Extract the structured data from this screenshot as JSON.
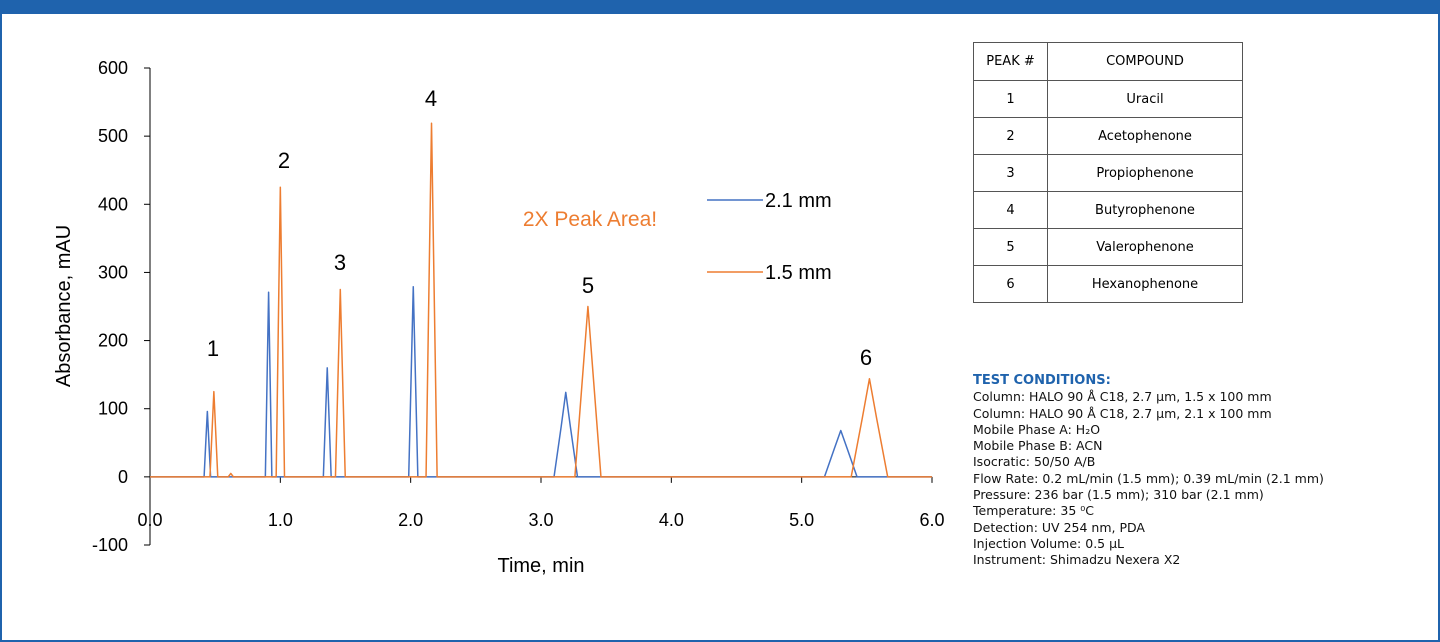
{
  "chart_data": {
    "type": "line",
    "annotations": [
      "1",
      "2",
      "3",
      "4",
      "5",
      "6",
      "2X Peak Area!"
    ],
    "xlabel": "Time, min",
    "ylabel": "Absorbance, mAU",
    "xlim": [
      0,
      6
    ],
    "ylim": [
      -100,
      600
    ],
    "xticks": [
      {
        "value": 0,
        "label": "0.0"
      },
      {
        "value": 1,
        "label": "1.0"
      },
      {
        "value": 2,
        "label": "2.0"
      },
      {
        "value": 3,
        "label": "3.0"
      },
      {
        "value": 4,
        "label": "4.0"
      },
      {
        "value": 5,
        "label": "5.0"
      },
      {
        "value": 6,
        "label": "6.0"
      }
    ],
    "yticks": [
      -100,
      0,
      100,
      200,
      300,
      400,
      500,
      600
    ],
    "series": [
      {
        "name": "2.1 mm",
        "color": "#4472c4",
        "x": [
          0,
          0.415,
          0.43,
          0.44,
          0.45,
          0.465,
          0.885,
          0.9,
          0.91,
          0.92,
          0.935,
          1.33,
          1.348,
          1.36,
          1.372,
          1.39,
          1.985,
          2.006,
          2.02,
          2.034,
          2.055,
          3.1,
          3.155,
          3.19,
          3.225,
          3.28,
          5.175,
          5.25,
          5.3,
          5.35,
          5.425,
          6
        ],
        "values": [
          0,
          0,
          58,
          96,
          58,
          0,
          0,
          163,
          271,
          163,
          0,
          0,
          96,
          160,
          96,
          0,
          0,
          167,
          279,
          167,
          0,
          0,
          74,
          124,
          74,
          0,
          0,
          41,
          68,
          41,
          0,
          0
        ]
      },
      {
        "name": "1.5 mm",
        "color": "#ed7d31",
        "x": [
          0,
          0.46,
          0.478,
          0.49,
          0.502,
          0.52,
          0.6,
          0.62,
          0.64,
          0.968,
          0.987,
          1.0,
          1.013,
          1.032,
          1.423,
          1.445,
          1.46,
          1.475,
          1.498,
          2.118,
          2.143,
          2.16,
          2.177,
          2.203,
          3.26,
          3.32,
          3.36,
          3.4,
          3.46,
          5.38,
          5.465,
          5.52,
          5.575,
          5.66,
          6
        ],
        "values": [
          0,
          0,
          75,
          125,
          75,
          0,
          0,
          5,
          0,
          0,
          255,
          425,
          255,
          0,
          0,
          165,
          275,
          165,
          0,
          0,
          311,
          519,
          311,
          0,
          0,
          150,
          250,
          150,
          0,
          0,
          86,
          144,
          86,
          0,
          0
        ]
      }
    ]
  },
  "table": {
    "header": [
      "PEAK #",
      "COMPOUND"
    ],
    "rows": [
      [
        "1",
        "Uracil"
      ],
      [
        "2",
        "Acetophenone"
      ],
      [
        "3",
        "Propiophenone"
      ],
      [
        "4",
        "Butyrophenone"
      ],
      [
        "5",
        "Valerophenone"
      ],
      [
        "6",
        "Hexanophenone"
      ]
    ]
  },
  "test_conditions": {
    "title": "TEST CONDITIONS:",
    "lines": [
      "Column: HALO 90 Å C18, 2.7 µm, 1.5 x 100 mm",
      "Column: HALO 90 Å C18, 2.7 µm, 2.1 x 100 mm",
      "Mobile Phase A: H₂O",
      "Mobile Phase B: ACN",
      "Isocratic: 50/50 A/B",
      "Flow Rate: 0.2 mL/min (1.5 mm); 0.39 mL/min (2.1 mm)",
      "Pressure: 236 bar (1.5 mm); 310 bar (2.1 mm)",
      "Temperature: 35 ⁰C",
      "Detection: UV 254 nm, PDA",
      "Injection Volume: 0.5 µL",
      "Instrument: Shimadzu Nexera X2"
    ]
  }
}
